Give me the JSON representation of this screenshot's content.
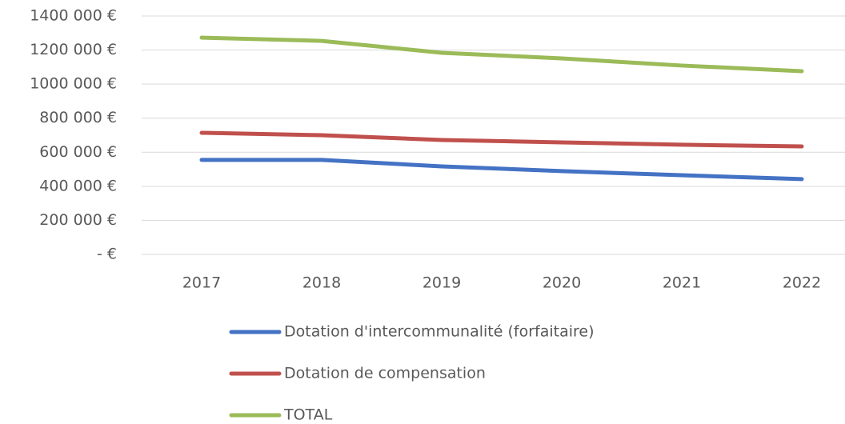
{
  "chart_data": {
    "type": "line",
    "categories": [
      "2017",
      "2018",
      "2019",
      "2020",
      "2021",
      "2022"
    ],
    "series": [
      {
        "name": "Dotation d'intercommunalité (forfaitaire)",
        "color": "#4472c4",
        "values": [
          555000,
          555000,
          517000,
          489000,
          465000,
          442000
        ]
      },
      {
        "name": "Dotation de compensation",
        "color": "#c0504d",
        "values": [
          714000,
          700000,
          672000,
          658000,
          644000,
          634000
        ]
      },
      {
        "name": "TOTAL",
        "color": "#9bbb59",
        "values": [
          1273000,
          1254000,
          1184000,
          1151000,
          1109000,
          1076000
        ]
      }
    ],
    "ylim": [
      0,
      1400000
    ],
    "yticks": [
      {
        "value": 0,
        "label": "-   €"
      },
      {
        "value": 200000,
        "label": "200 000 €"
      },
      {
        "value": 400000,
        "label": "400 000 €"
      },
      {
        "value": 600000,
        "label": "600 000 €"
      },
      {
        "value": 800000,
        "label": "800 000 €"
      },
      {
        "value": 1000000,
        "label": "1000 000 €"
      },
      {
        "value": 1200000,
        "label": "1200 000 €"
      },
      {
        "value": 1400000,
        "label": "1400 000 €"
      }
    ],
    "grid": true,
    "legend": "bottom"
  }
}
